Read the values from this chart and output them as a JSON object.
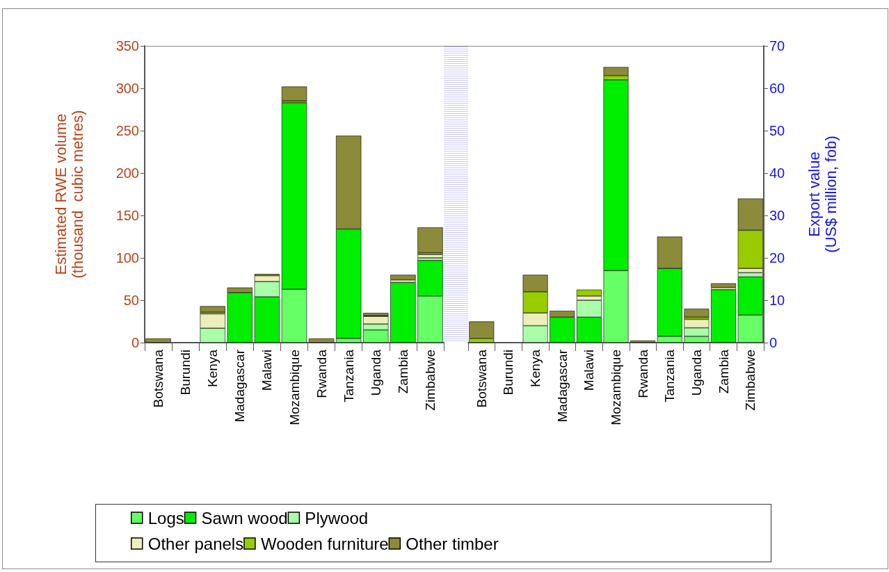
{
  "chart_data": [
    {
      "type": "bar",
      "stacked": true,
      "ylabel": "Estimated RWE volume (thousand  cubic metres)",
      "categories": [
        "Botswana",
        "Burundi",
        "Kenya",
        "Madagascar",
        "Malawi",
        "Mozambique",
        "Rwanda",
        "Tanzania",
        "Uganda",
        "Zambia",
        "Zimbabwe"
      ],
      "ylim": [
        0,
        350
      ],
      "yticks": [
        0,
        50,
        100,
        150,
        200,
        250,
        300,
        350
      ],
      "grid": false,
      "legend": "bottom",
      "series": [
        {
          "name": "Logs",
          "color": "#66ff66",
          "values": [
            0,
            0,
            0,
            0,
            0,
            63,
            0,
            5,
            15,
            0,
            55
          ]
        },
        {
          "name": "Sawn wood",
          "color": "#00ee00",
          "values": [
            0,
            0,
            0,
            59,
            54,
            220,
            0,
            129,
            0,
            71,
            42
          ]
        },
        {
          "name": "Plywood",
          "color": "#a8ffa8",
          "values": [
            0,
            0,
            17,
            0,
            18,
            0,
            0,
            0,
            7,
            0,
            3
          ]
        },
        {
          "name": "Other panels",
          "color": "#eeeebb",
          "values": [
            0,
            0,
            17,
            0,
            7,
            0,
            0,
            0,
            9,
            3,
            4
          ]
        },
        {
          "name": "Wooden furniture",
          "color": "#99cc00",
          "values": [
            0,
            0,
            2,
            0,
            0,
            2,
            0,
            0,
            1,
            0,
            2
          ]
        },
        {
          "name": "Other timber",
          "color": "#8b8b3a",
          "values": [
            5,
            0,
            7,
            6,
            2,
            17,
            5,
            110,
            3,
            6,
            30
          ]
        }
      ]
    },
    {
      "type": "bar",
      "stacked": true,
      "y2label": "Export value (US$ million, fob)",
      "categories": [
        "Botswana",
        "Burundi",
        "Kenya",
        "Madagascar",
        "Malawi",
        "Mozambique",
        "Rwanda",
        "Tanzania",
        "Uganda",
        "Zambia",
        "Zimbabwe"
      ],
      "y2lim": [
        0,
        70
      ],
      "y2ticks": [
        0,
        10,
        20,
        30,
        40,
        50,
        60,
        70
      ],
      "grid": false,
      "series": [
        {
          "color": "#66ff66",
          "axis": "y2",
          "values": [
            0,
            0,
            0,
            0,
            0,
            17,
            0,
            1.5,
            1.5,
            0,
            6.5
          ]
        },
        {
          "color": "#00ee00",
          "axis": "y2",
          "values": [
            0,
            0,
            0,
            6,
            6,
            45,
            0,
            16,
            0,
            12.5,
            9
          ]
        },
        {
          "color": "#a8ffa8",
          "axis": "y2",
          "values": [
            0,
            0,
            4,
            0,
            4,
            0,
            0,
            0,
            2,
            0,
            1
          ]
        },
        {
          "color": "#eeeebb",
          "axis": "y2",
          "values": [
            0,
            0,
            3,
            0,
            1,
            0,
            0,
            0,
            2,
            0.5,
            1
          ]
        },
        {
          "color": "#99cc00",
          "axis": "y2",
          "values": [
            1,
            0,
            5,
            0,
            1.5,
            1,
            0,
            0,
            0.5,
            0,
            9
          ]
        },
        {
          "color": "#8b8b3a",
          "axis": "y2",
          "values": [
            4,
            0,
            4,
            1.5,
            0,
            2,
            0.5,
            7.5,
            2,
            1,
            7.5
          ]
        }
      ]
    }
  ]
}
